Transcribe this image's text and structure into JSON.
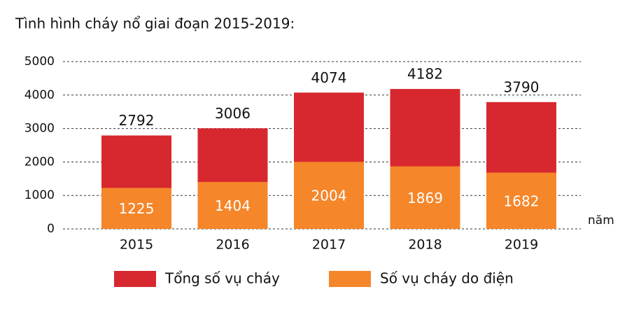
{
  "chart_data": {
    "type": "bar",
    "barmode": "overlay",
    "title": "Tình hình cháy nổ giai đoạn 2015-2019:",
    "x_label": "năm",
    "categories": [
      "2015",
      "2016",
      "2017",
      "2018",
      "2019"
    ],
    "series": [
      {
        "name": "Tổng số vụ cháy",
        "color": "#d7282f",
        "values": [
          2792,
          3006,
          4074,
          4182,
          3790
        ]
      },
      {
        "name": "Số vụ cháy do điện",
        "color": "#f5862a",
        "values": [
          1225,
          1404,
          2004,
          1869,
          1682
        ]
      }
    ],
    "ylim": [
      0,
      5000
    ],
    "yticks": [
      0,
      1000,
      2000,
      3000,
      4000,
      5000
    ],
    "grid": true
  }
}
